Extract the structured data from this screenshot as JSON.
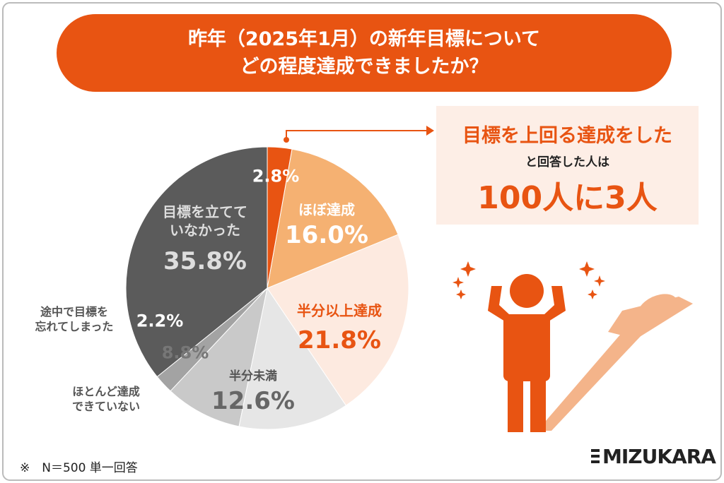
{
  "chart_data": {
    "type": "pie",
    "title": "昨年（2025年1月）の新年目標について\nどの程度達成できましたか？",
    "categories": [
      null,
      "ほぼ達成",
      "半分以上達成",
      "半分未満",
      "ほとんど達成\nできていない",
      "途中で目標を\n忘れてしまった",
      "目標を立てて\nいなかった"
    ],
    "values": [
      2.8,
      16.0,
      21.8,
      12.6,
      8.8,
      2.2,
      35.8
    ],
    "value_labels": [
      "2.8%",
      "16.0%",
      "21.8%",
      "12.6%",
      "8.8%",
      "2.2%",
      "35.8%"
    ],
    "colors": [
      "#e85412",
      "#f5b172",
      "#fdeae0",
      "#e6e6e6",
      "#c9c9c9",
      "#a3a3a3",
      "#5b5b5b"
    ],
    "callout": {
      "line1": "目標を上回る達成をした",
      "line2": "と回答した人は",
      "line3": "100人に3人"
    },
    "footnote": "※　N＝500 単一回答",
    "logo": "MIZUKARA"
  }
}
